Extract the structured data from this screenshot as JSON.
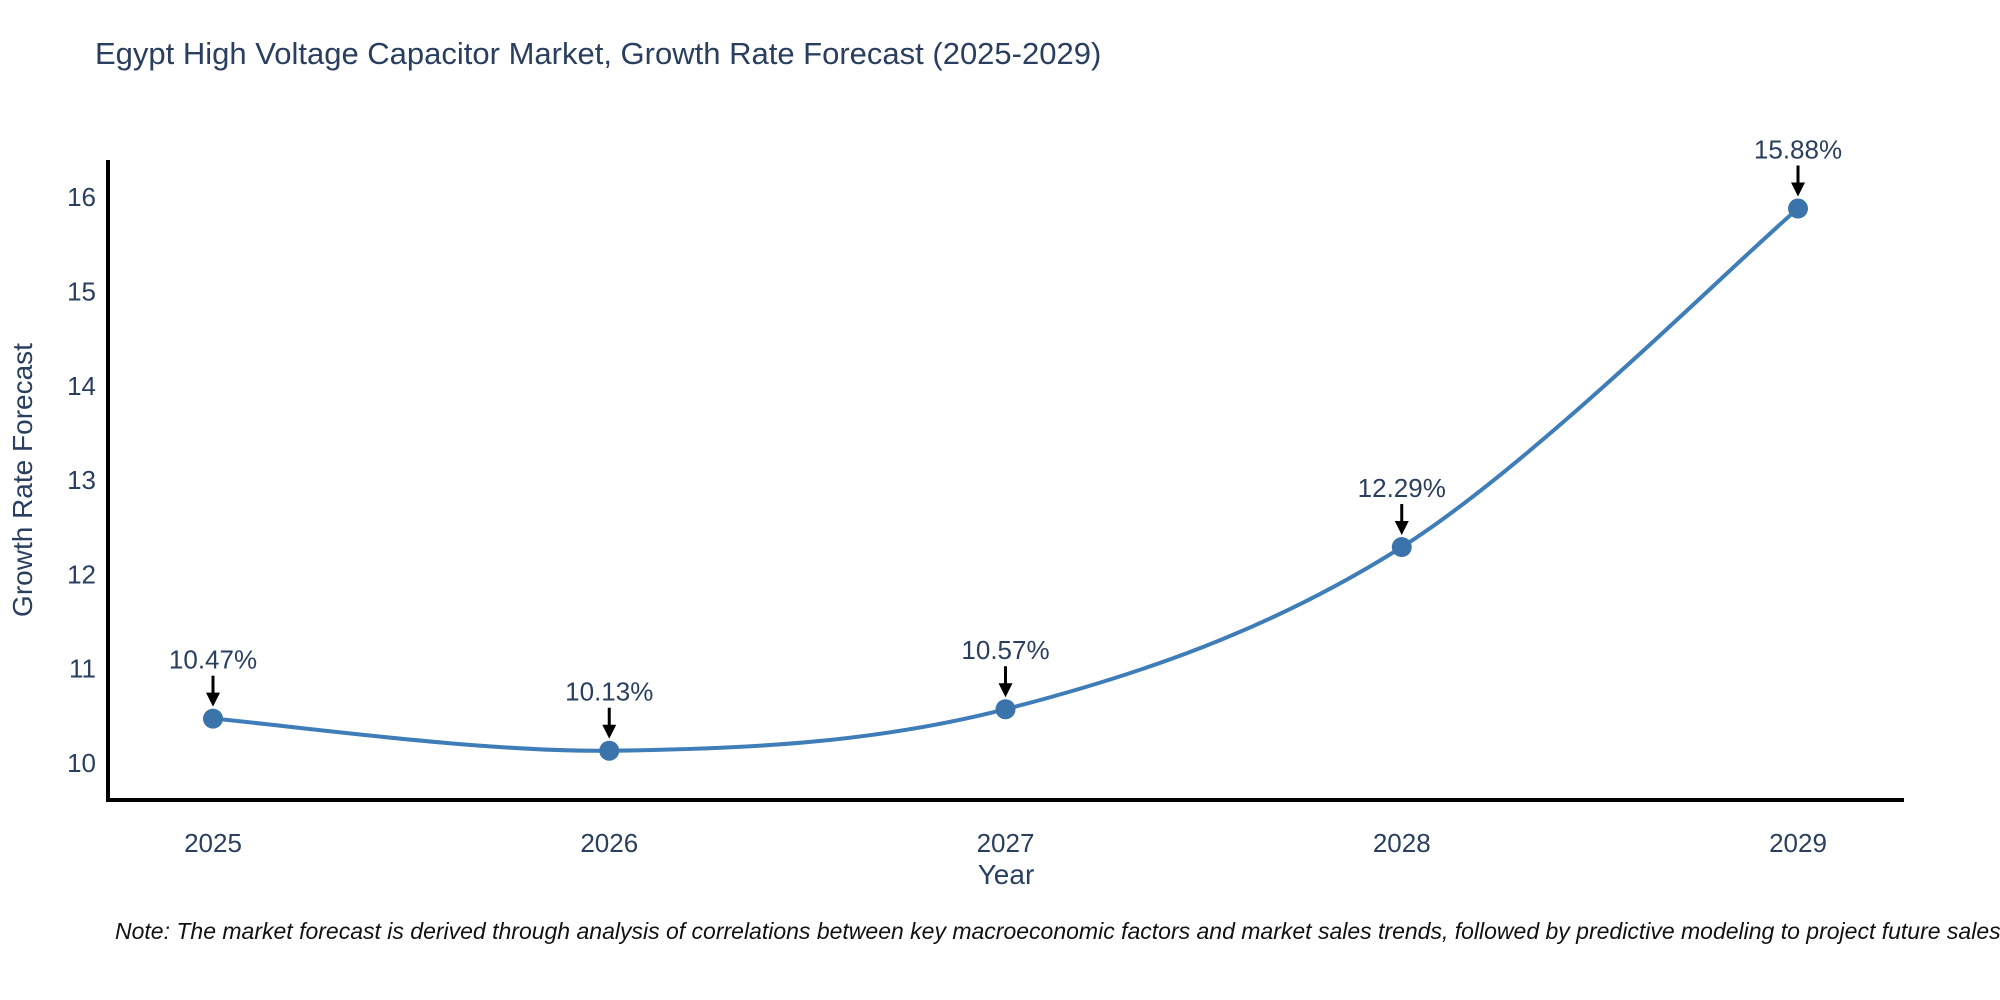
{
  "page": {
    "title": "Egypt High Voltage Capacitor Market, Growth Rate Forecast (2025-2029)",
    "note": "Note: The market forecast is derived through analysis of correlations between key macroeconomic factors and market sales trends, followed by predictive modeling to project future sales"
  },
  "chart_data": {
    "type": "line",
    "title": "Egypt High Voltage Capacitor Market, Growth Rate Forecast (2025-2029)",
    "xlabel": "Year",
    "ylabel": "Growth Rate Forecast",
    "x": [
      2025,
      2026,
      2027,
      2028,
      2029
    ],
    "x_tick_labels": [
      "2025",
      "2026",
      "2027",
      "2028",
      "2029"
    ],
    "y_ticks": [
      10,
      11,
      12,
      13,
      14,
      15,
      16
    ],
    "series": [
      {
        "name": "Growth Rate Forecast",
        "values": [
          10.47,
          10.13,
          10.57,
          12.29,
          15.88
        ]
      }
    ],
    "point_labels": [
      "10.47%",
      "10.13%",
      "10.57%",
      "12.29%",
      "15.88%"
    ],
    "xlim": [
      2024.73,
      2029.27
    ],
    "ylim": [
      9.61,
      16.39
    ],
    "grid": false,
    "legend": "none",
    "line_shape": "spline",
    "annotation_style": "black-down-arrow",
    "colors": {
      "line": "#3e7db8",
      "marker": "#3a74ab",
      "axis": "#000000",
      "text": "#2a3f5f",
      "annotation_arrow": "#000000",
      "note_text": "#111111"
    }
  }
}
